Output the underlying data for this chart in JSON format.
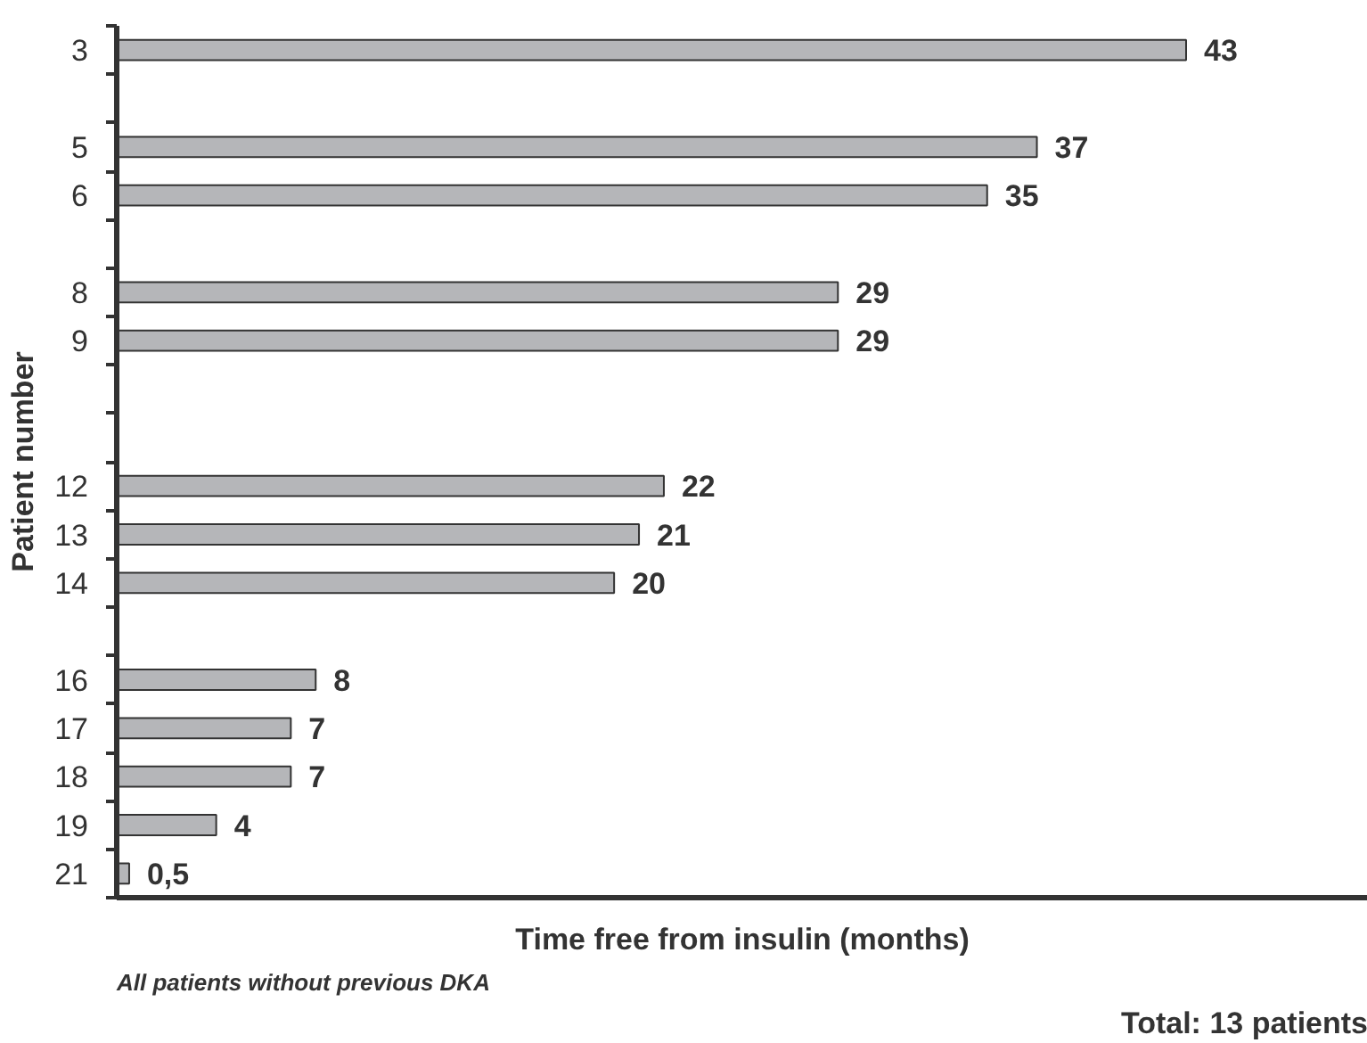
{
  "chart_data": {
    "type": "bar",
    "orientation": "horizontal",
    "xlabel": "Time free from insulin (months)",
    "ylabel": "Patient number",
    "categories": [
      "3",
      null,
      "5",
      "6",
      null,
      "8",
      "9",
      null,
      null,
      "12",
      "13",
      "14",
      null,
      "16",
      "17",
      "18",
      "19",
      "21"
    ],
    "values": [
      43,
      null,
      37,
      35,
      null,
      29,
      29,
      null,
      null,
      22,
      21,
      20,
      null,
      8,
      7,
      7,
      4,
      0.5
    ],
    "value_labels": [
      "43",
      null,
      "37",
      "35",
      null,
      "29",
      "29",
      null,
      null,
      "22",
      "21",
      "20",
      null,
      "8",
      "7",
      "7",
      "4",
      "0,5"
    ],
    "color": "#b5b6b9",
    "tick_labels": "y",
    "annotations": [
      "All patients without previous DKA",
      "Total: 13 patients"
    ]
  }
}
